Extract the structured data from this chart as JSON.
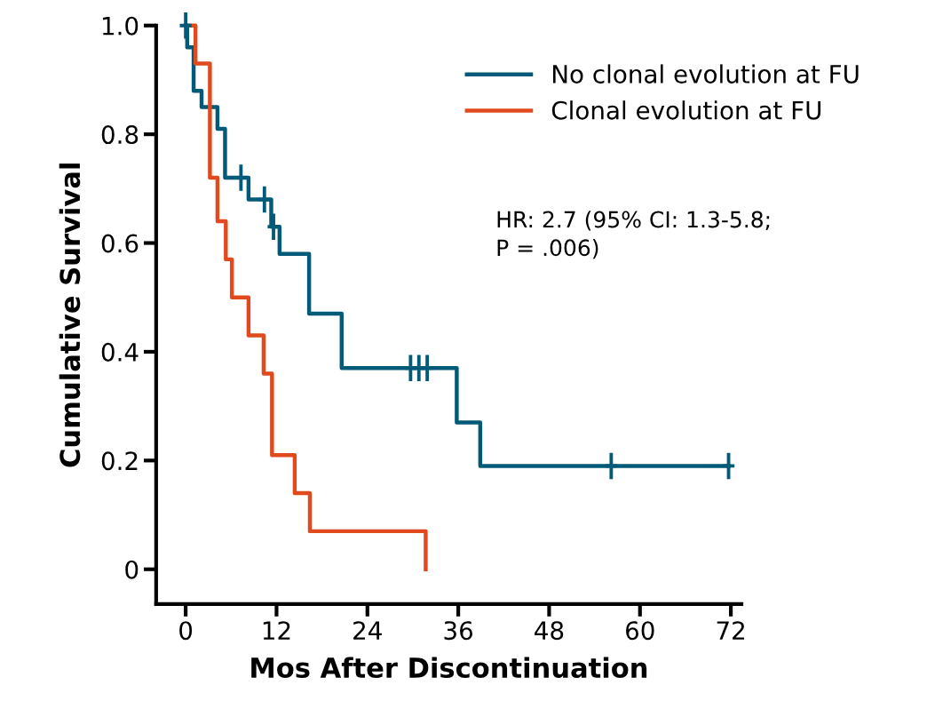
{
  "chart_data": {
    "type": "step",
    "xlabel": "Mos After Discontinuation",
    "ylabel": "Cumulative Survival",
    "series": [
      {
        "name": "No clonal evolution at FU",
        "color": "#005a78",
        "x": [
          0,
          0.2,
          1.05,
          2.1,
          4.2,
          5.2,
          8.3,
          11.3,
          12.4,
          16.3,
          20.6,
          35.8,
          38.9,
          71.7
        ],
        "values": [
          1,
          0.96,
          0.88,
          0.85,
          0.81,
          0.72,
          0.68,
          0.63,
          0.58,
          0.47,
          0.37,
          0.27,
          0.19,
          0.19
        ]
      },
      {
        "name": "Clonal evolution at FU",
        "color": "#e04a1e",
        "x": [
          0,
          1.3,
          3.2,
          4.2,
          5.3,
          6.1,
          8.3,
          10.3,
          11.4,
          14.4,
          16.4,
          31.7
        ],
        "values": [
          1,
          0.93,
          0.72,
          0.64,
          0.57,
          0.5,
          0.43,
          0.36,
          0.21,
          0.14,
          0.07,
          0
        ]
      },
      {
        "type": "scatter",
        "marker": "cross",
        "color": "#005a78",
        "x": [
          0,
          7.3,
          10.4,
          11.6,
          29.7,
          30.8,
          31.9,
          56.2,
          71.7
        ],
        "values": [
          1,
          0.72,
          0.68,
          0.63,
          0.37,
          0.37,
          0.37,
          0.19,
          0.19
        ]
      }
    ],
    "xlim": [
      -3.9,
      73.4
    ],
    "xticks": [
      0,
      12,
      24,
      36,
      48,
      60,
      72
    ],
    "ylim": [
      -0.064,
      1.0
    ],
    "yticks": [
      0,
      0.2,
      0.4,
      0.6,
      0.8,
      {
        "value": 1,
        "label": "1.0"
      }
    ],
    "annotations": [
      "HR: 2.7 (95% CI: 1.3-5.8;\nP = .006)"
    ],
    "legend": "top right",
    "grid": false
  }
}
